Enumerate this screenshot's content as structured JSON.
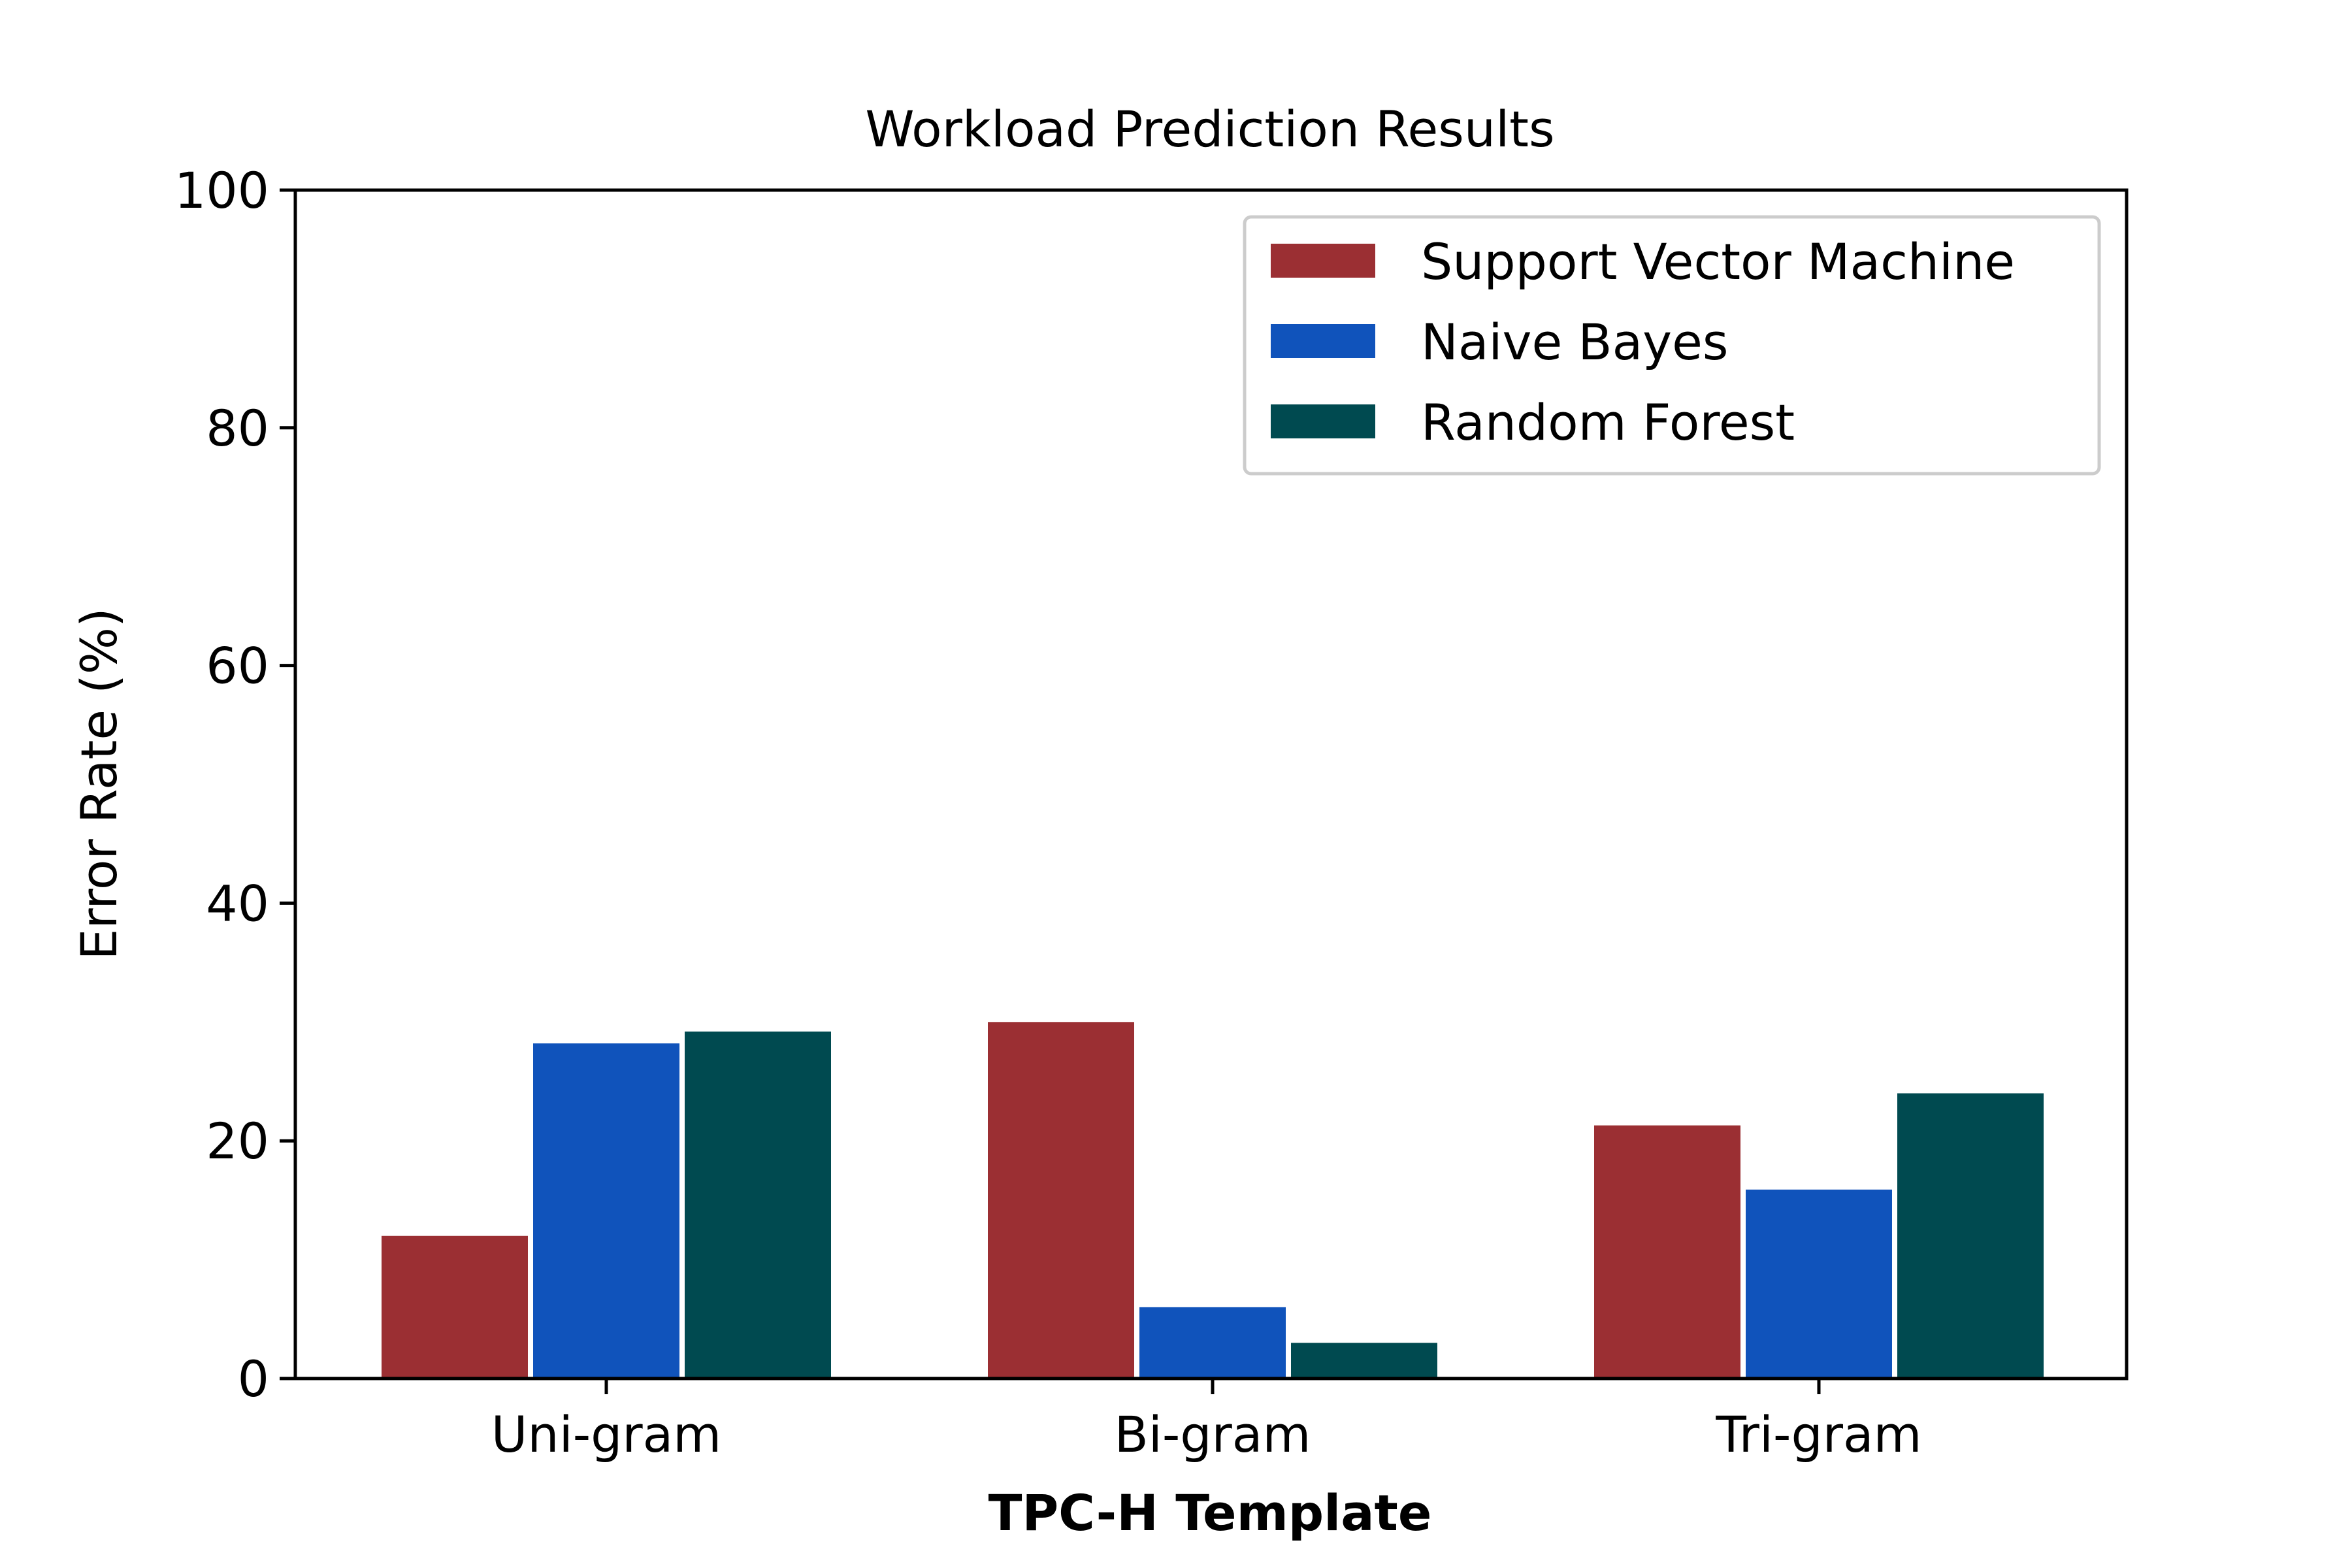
{
  "chart_data": {
    "type": "bar",
    "title": "Workload Prediction Results",
    "xlabel": "TPC-H Template",
    "ylabel": "Error Rate (%)",
    "categories": [
      "Uni-gram",
      "Bi-gram",
      "Tri-gram"
    ],
    "series": [
      {
        "name": "Support Vector Machine",
        "color": "#9b2f33",
        "values": [
          12,
          30,
          21.3
        ]
      },
      {
        "name": "Naive Bayes",
        "color": "#1053bb",
        "values": [
          28.2,
          6,
          15.9
        ]
      },
      {
        "name": "Random Forest",
        "color": "#004a50",
        "values": [
          29.2,
          3,
          24
        ]
      }
    ],
    "ylim": [
      0,
      100
    ],
    "yticks": [
      "0",
      "20",
      "40",
      "60",
      "80",
      "100"
    ],
    "grid": false,
    "legend_position": "top-right"
  }
}
